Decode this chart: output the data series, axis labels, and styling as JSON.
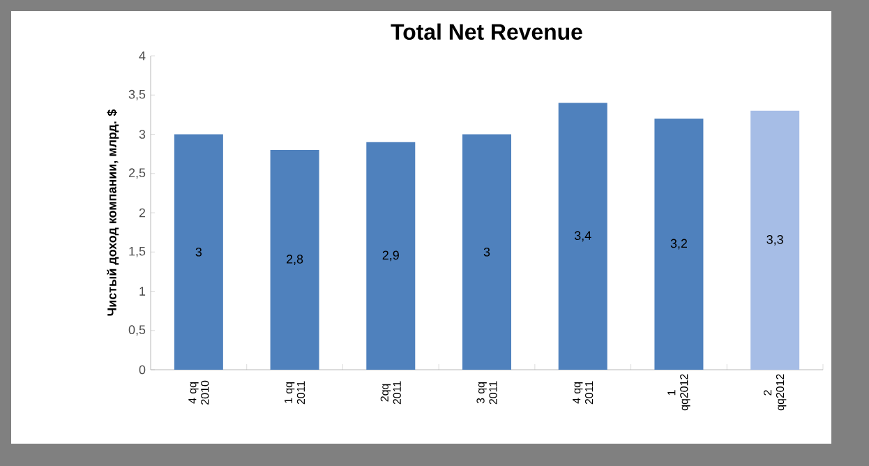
{
  "chart_data": {
    "type": "bar",
    "title": "Total Net Revenue",
    "ylabel": "Чистый доход компании, млрд. $",
    "categories": [
      "4 qq 2010",
      "1 qq 2011",
      "2qq 2011",
      "3 qq 2011",
      "4 qq 2011",
      "1 qq2012",
      "2 qq2012"
    ],
    "values": [
      3,
      2.8,
      2.9,
      3,
      3.4,
      3.2,
      3.3
    ],
    "value_labels": [
      "3",
      "2,8",
      "2,9",
      "3",
      "3,4",
      "3,2",
      "3,3"
    ],
    "colors": [
      "#4f81bd",
      "#4f81bd",
      "#4f81bd",
      "#4f81bd",
      "#4f81bd",
      "#4f81bd",
      "#a6bde6"
    ],
    "ylim": [
      0,
      4
    ],
    "yticks": [
      0,
      {
        "value": 0.5,
        "label": "0,5"
      },
      1,
      {
        "value": 1.5,
        "label": "1,5"
      },
      2,
      {
        "value": 2.5,
        "label": "2,5"
      },
      3,
      {
        "value": 3.5,
        "label": "3,5"
      },
      4
    ],
    "grid": false
  }
}
